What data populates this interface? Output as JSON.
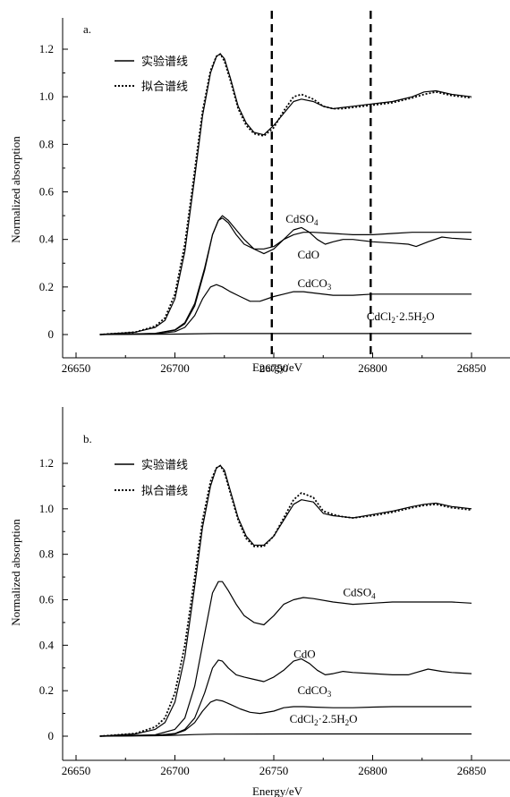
{
  "chart_data": [
    {
      "panel": "a.",
      "type": "line",
      "xlabel": "Energy/eV",
      "ylabel": "Normalized absorption",
      "xlim": [
        26630,
        26860
      ],
      "ylim": [
        -0.1,
        1.31
      ],
      "xticks": [
        26650,
        26700,
        26750,
        26800,
        26850
      ],
      "yticks": [
        0,
        0.2,
        0.4,
        0.6,
        0.8,
        1.0,
        1.2
      ],
      "ytick_labels": [
        "0",
        "0.2",
        "0.4",
        "0.6",
        "0.8",
        "1.0",
        "1.2"
      ],
      "vlines": [
        26749,
        26799
      ],
      "legend": [
        {
          "text": "实验谱线",
          "style": "solid"
        },
        {
          "text": "拟合谱线",
          "style": "dotted"
        }
      ],
      "series": [
        {
          "id": "experimental",
          "style": "solid",
          "x": [
            26662,
            26680,
            26690,
            26695,
            26700,
            26705,
            26710,
            26714,
            26718,
            26721,
            26723,
            26725,
            26728,
            26732,
            26736,
            26740,
            26745,
            26750,
            26755,
            26760,
            26764,
            26770,
            26775,
            26780,
            26785,
            26790,
            26800,
            26810,
            26820,
            26826,
            26832,
            26840,
            26850
          ],
          "y": [
            0,
            0.01,
            0.03,
            0.06,
            0.15,
            0.35,
            0.66,
            0.92,
            1.1,
            1.17,
            1.18,
            1.16,
            1.08,
            0.96,
            0.89,
            0.85,
            0.84,
            0.88,
            0.93,
            0.98,
            0.99,
            0.98,
            0.96,
            0.95,
            0.955,
            0.96,
            0.97,
            0.98,
            1.0,
            1.02,
            1.025,
            1.01,
            1.0
          ]
        },
        {
          "id": "fitted",
          "style": "dotted",
          "x": [
            26662,
            26680,
            26690,
            26695,
            26700,
            26705,
            26710,
            26714,
            26718,
            26721,
            26723,
            26725,
            26728,
            26732,
            26736,
            26740,
            26745,
            26750,
            26755,
            26760,
            26764,
            26770,
            26775,
            26780,
            26785,
            26790,
            26800,
            26810,
            26820,
            26826,
            26832,
            26840,
            26850
          ],
          "y": [
            0,
            0.01,
            0.035,
            0.07,
            0.17,
            0.38,
            0.69,
            0.94,
            1.11,
            1.17,
            1.18,
            1.15,
            1.07,
            0.95,
            0.88,
            0.845,
            0.835,
            0.87,
            0.94,
            1.0,
            1.01,
            0.99,
            0.96,
            0.95,
            0.95,
            0.955,
            0.965,
            0.975,
            0.995,
            1.01,
            1.02,
            1.005,
            0.995
          ]
        },
        {
          "id": "CdSO4",
          "style": "solid",
          "x": [
            26662,
            26690,
            26700,
            26705,
            26710,
            26715,
            26719,
            26722,
            26724,
            26727,
            26731,
            26735,
            26740,
            26745,
            26750,
            26755,
            26760,
            26765,
            26770,
            26780,
            26790,
            26800,
            26810,
            26820,
            26830,
            26840,
            26850
          ],
          "y": [
            0,
            0.005,
            0.02,
            0.05,
            0.13,
            0.28,
            0.42,
            0.48,
            0.49,
            0.47,
            0.42,
            0.38,
            0.36,
            0.36,
            0.37,
            0.4,
            0.42,
            0.43,
            0.43,
            0.425,
            0.42,
            0.42,
            0.425,
            0.43,
            0.43,
            0.43,
            0.43
          ]
        },
        {
          "id": "CdO",
          "style": "solid",
          "x": [
            26662,
            26690,
            26700,
            26705,
            26710,
            26715,
            26719,
            26722,
            26724,
            26727,
            26731,
            26735,
            26740,
            26745,
            26750,
            26755,
            26760,
            26764,
            26768,
            26772,
            26776,
            26780,
            26785,
            26790,
            26800,
            26810,
            26818,
            26822,
            26828,
            26835,
            26840,
            26850
          ],
          "y": [
            0,
            0.004,
            0.018,
            0.045,
            0.12,
            0.27,
            0.42,
            0.48,
            0.5,
            0.48,
            0.44,
            0.4,
            0.36,
            0.34,
            0.36,
            0.4,
            0.44,
            0.45,
            0.43,
            0.4,
            0.38,
            0.39,
            0.4,
            0.4,
            0.39,
            0.385,
            0.38,
            0.37,
            0.39,
            0.41,
            0.405,
            0.4
          ]
        },
        {
          "id": "CdCO3",
          "style": "solid",
          "x": [
            26662,
            26690,
            26700,
            26705,
            26710,
            26714,
            26718,
            26721,
            26724,
            26728,
            26733,
            26738,
            26743,
            26750,
            26755,
            26760,
            26765,
            26770,
            26780,
            26790,
            26800,
            26810,
            26820,
            26830,
            26840,
            26850
          ],
          "y": [
            0,
            0.003,
            0.012,
            0.03,
            0.08,
            0.15,
            0.2,
            0.21,
            0.2,
            0.18,
            0.16,
            0.14,
            0.14,
            0.16,
            0.17,
            0.18,
            0.18,
            0.175,
            0.165,
            0.165,
            0.17,
            0.17,
            0.17,
            0.17,
            0.17,
            0.17
          ]
        },
        {
          "id": "CdCl2",
          "style": "solid",
          "x": [
            26662,
            26700,
            26720,
            26760,
            26800,
            26850
          ],
          "y": [
            0,
            0.002,
            0.004,
            0.004,
            0.004,
            0.004
          ]
        }
      ],
      "labels": [
        {
          "text": "CdSO",
          "sub": "4",
          "x": 26756,
          "y": 0.47
        },
        {
          "text": "CdO",
          "sub": "",
          "x": 26762,
          "y": 0.32
        },
        {
          "text": "CdCO",
          "sub": "3",
          "x": 26762,
          "y": 0.2
        },
        {
          "text": "CdCl",
          "sub": "2",
          "rest": "·2.5H",
          "sub2": "2",
          "tail": "O",
          "x": 26797,
          "y": 0.06
        }
      ]
    },
    {
      "panel": "b.",
      "type": "line",
      "xlabel": "Energy/eV",
      "ylabel": "Normalized absorption",
      "xlim": [
        26630,
        26860
      ],
      "ylim": [
        -0.07,
        1.33
      ],
      "xticks": [
        26650,
        26700,
        26750,
        26800,
        26850
      ],
      "yticks": [
        0,
        0.2,
        0.4,
        0.6,
        0.8,
        1.0,
        1.2
      ],
      "ytick_labels": [
        "0",
        "0.2",
        "0.4",
        "0.6",
        "0.8",
        "1.0",
        "1.2"
      ],
      "vlines": [],
      "legend": [
        {
          "text": "实验谱线",
          "style": "solid"
        },
        {
          "text": "拟合谱线",
          "style": "dotted"
        }
      ],
      "series": [
        {
          "id": "experimental",
          "style": "solid",
          "x": [
            26662,
            26680,
            26690,
            26695,
            26700,
            26705,
            26710,
            26714,
            26718,
            26721,
            26723,
            26725,
            26728,
            26732,
            26736,
            26740,
            26745,
            26750,
            26755,
            26760,
            26764,
            26770,
            26775,
            26780,
            26785,
            26790,
            26800,
            26810,
            26820,
            26826,
            26832,
            26840,
            26850
          ],
          "y": [
            0,
            0.01,
            0.03,
            0.06,
            0.15,
            0.35,
            0.66,
            0.92,
            1.1,
            1.18,
            1.19,
            1.17,
            1.08,
            0.96,
            0.88,
            0.84,
            0.84,
            0.88,
            0.95,
            1.02,
            1.04,
            1.03,
            0.98,
            0.97,
            0.965,
            0.96,
            0.975,
            0.99,
            1.01,
            1.02,
            1.025,
            1.01,
            1.0
          ]
        },
        {
          "id": "fitted",
          "style": "dotted",
          "x": [
            26662,
            26680,
            26690,
            26695,
            26700,
            26705,
            26710,
            26714,
            26718,
            26721,
            26723,
            26725,
            26728,
            26732,
            26736,
            26740,
            26745,
            26750,
            26755,
            26760,
            26764,
            26770,
            26775,
            26780,
            26785,
            26790,
            26800,
            26810,
            26820,
            26826,
            26832,
            26840,
            26850
          ],
          "y": [
            0,
            0.012,
            0.04,
            0.08,
            0.19,
            0.4,
            0.7,
            0.95,
            1.12,
            1.18,
            1.19,
            1.16,
            1.07,
            0.95,
            0.87,
            0.835,
            0.835,
            0.88,
            0.96,
            1.04,
            1.07,
            1.05,
            0.99,
            0.975,
            0.965,
            0.96,
            0.97,
            0.985,
            1.005,
            1.015,
            1.02,
            1.005,
            0.995
          ]
        },
        {
          "id": "CdSO4",
          "style": "solid",
          "x": [
            26662,
            26690,
            26700,
            26705,
            26710,
            26715,
            26719,
            26722,
            26724,
            26727,
            26731,
            26735,
            26740,
            26745,
            26750,
            26755,
            26760,
            26765,
            26770,
            26780,
            26790,
            26800,
            26810,
            26820,
            26830,
            26840,
            26850
          ],
          "y": [
            0,
            0.006,
            0.03,
            0.08,
            0.22,
            0.45,
            0.63,
            0.68,
            0.68,
            0.64,
            0.58,
            0.53,
            0.5,
            0.49,
            0.53,
            0.58,
            0.6,
            0.61,
            0.605,
            0.59,
            0.58,
            0.585,
            0.59,
            0.59,
            0.59,
            0.59,
            0.585
          ]
        },
        {
          "id": "CdO",
          "style": "solid",
          "x": [
            26662,
            26690,
            26700,
            26705,
            26710,
            26715,
            26719,
            26722,
            26724,
            26727,
            26731,
            26735,
            26740,
            26745,
            26750,
            26755,
            26760,
            26764,
            26768,
            26772,
            26776,
            26780,
            26785,
            26790,
            26800,
            26810,
            26818,
            26822,
            26828,
            26835,
            26840,
            26850
          ],
          "y": [
            0,
            0.003,
            0.012,
            0.03,
            0.08,
            0.19,
            0.3,
            0.335,
            0.33,
            0.3,
            0.27,
            0.26,
            0.25,
            0.24,
            0.26,
            0.29,
            0.33,
            0.34,
            0.32,
            0.29,
            0.27,
            0.275,
            0.285,
            0.28,
            0.275,
            0.27,
            0.27,
            0.28,
            0.295,
            0.285,
            0.28,
            0.275
          ]
        },
        {
          "id": "CdCO3",
          "style": "solid",
          "x": [
            26662,
            26690,
            26700,
            26705,
            26710,
            26714,
            26718,
            26721,
            26724,
            26728,
            26733,
            26738,
            26743,
            26750,
            26755,
            26760,
            26765,
            26770,
            26780,
            26790,
            26800,
            26810,
            26820,
            26830,
            26840,
            26850
          ],
          "y": [
            0,
            0.003,
            0.01,
            0.025,
            0.06,
            0.11,
            0.15,
            0.16,
            0.155,
            0.14,
            0.12,
            0.105,
            0.1,
            0.11,
            0.125,
            0.13,
            0.13,
            0.128,
            0.125,
            0.125,
            0.128,
            0.13,
            0.13,
            0.13,
            0.13,
            0.13
          ]
        },
        {
          "id": "CdCl2",
          "style": "solid",
          "x": [
            26662,
            26690,
            26700,
            26710,
            26720,
            26760,
            26800,
            26850
          ],
          "y": [
            0,
            0.002,
            0.004,
            0.007,
            0.009,
            0.01,
            0.01,
            0.01
          ]
        }
      ],
      "labels": [
        {
          "text": "CdSO",
          "sub": "4",
          "x": 26785,
          "y": 0.615
        },
        {
          "text": "CdO",
          "sub": "",
          "x": 26760,
          "y": 0.345
        },
        {
          "text": "CdCO",
          "sub": "3",
          "x": 26762,
          "y": 0.185
        },
        {
          "text": "CdCl",
          "sub": "2",
          "rest": "·2.5H",
          "sub2": "2",
          "tail": "O",
          "x": 26758,
          "y": 0.06
        }
      ]
    }
  ]
}
